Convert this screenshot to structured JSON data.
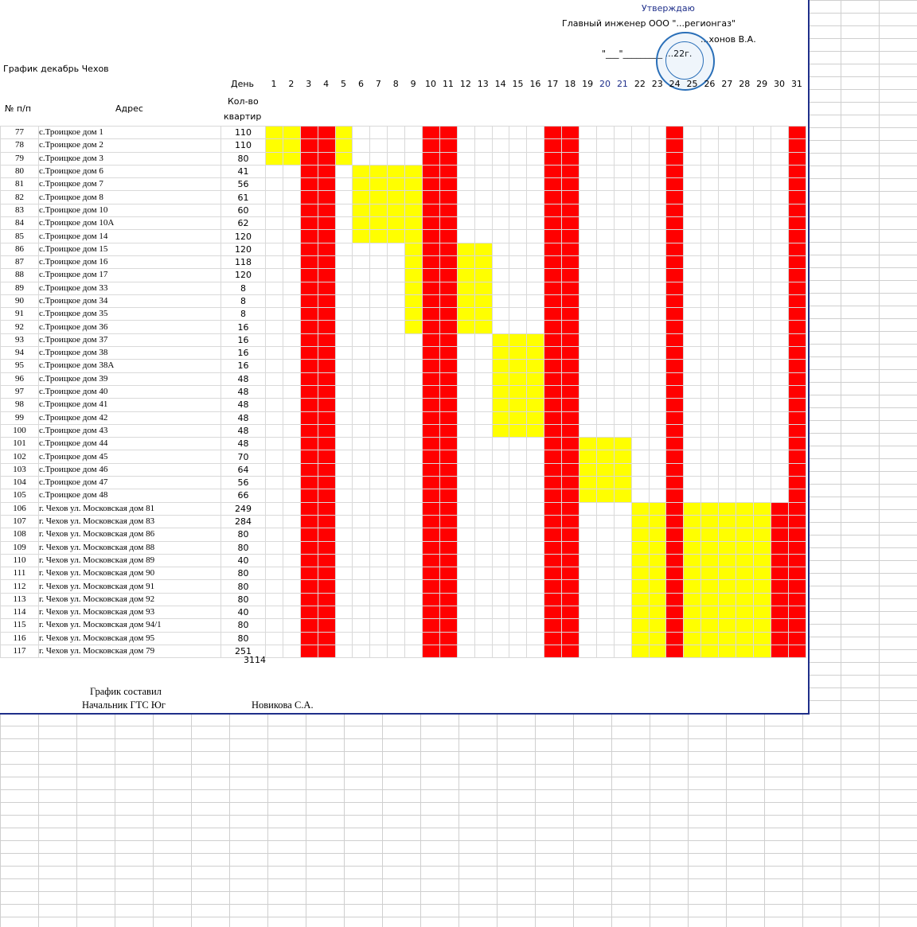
{
  "approval": {
    "title": "Утверждаю",
    "line1": "Главный инженер ООО \"...регионгаз\"",
    "line2": "...хонов В.А.",
    "line3": "\"___\"_________ ...22г."
  },
  "sheet_title": "График декабрь Чехов",
  "header": {
    "day_label": "День",
    "num_label": "№ п/п",
    "address_label": "Адрес",
    "qty_label_1": "Кол-во",
    "qty_label_2": "квартир",
    "days": [
      "1",
      "2",
      "3",
      "4",
      "5",
      "6",
      "7",
      "8",
      "9",
      "10",
      "11",
      "12",
      "13",
      "14",
      "15",
      "16",
      "17",
      "18",
      "19",
      "20",
      "21",
      "22",
      "23",
      "24",
      "25",
      "26",
      "27",
      "28",
      "29",
      "30",
      "31"
    ]
  },
  "rows": [
    {
      "n": "77",
      "addr": "с.Троицкое дом 1",
      "q": "110"
    },
    {
      "n": "78",
      "addr": "с.Троицкое дом 2",
      "q": "110"
    },
    {
      "n": "79",
      "addr": "с.Троицкое дом 3",
      "q": "80"
    },
    {
      "n": "80",
      "addr": "с.Троицкое дом 6",
      "q": "41"
    },
    {
      "n": "81",
      "addr": "с.Троицкое дом 7",
      "q": "56"
    },
    {
      "n": "82",
      "addr": "с.Троицкое дом 8",
      "q": "61"
    },
    {
      "n": "83",
      "addr": "с.Троицкое дом 10",
      "q": "60"
    },
    {
      "n": "84",
      "addr": "с.Троицкое дом 10А",
      "q": "62"
    },
    {
      "n": "85",
      "addr": "с.Троицкое дом 14",
      "q": "120"
    },
    {
      "n": "86",
      "addr": "с.Троицкое дом 15",
      "q": "120"
    },
    {
      "n": "87",
      "addr": "с.Троицкое дом 16",
      "q": "118"
    },
    {
      "n": "88",
      "addr": "с.Троицкое дом 17",
      "q": "120"
    },
    {
      "n": "89",
      "addr": "с.Троицкое дом 33",
      "q": "8"
    },
    {
      "n": "90",
      "addr": "с.Троицкое дом 34",
      "q": "8"
    },
    {
      "n": "91",
      "addr": "с.Троицкое дом 35",
      "q": "8"
    },
    {
      "n": "92",
      "addr": "с.Троицкое дом 36",
      "q": "16"
    },
    {
      "n": "93",
      "addr": "с.Троицкое дом 37",
      "q": "16"
    },
    {
      "n": "94",
      "addr": "с.Троицкое дом 38",
      "q": "16"
    },
    {
      "n": "95",
      "addr": "с.Троицкое дом 38А",
      "q": "16"
    },
    {
      "n": "96",
      "addr": "с.Троицкое дом 39",
      "q": "48"
    },
    {
      "n": "97",
      "addr": "с.Троицкое дом 40",
      "q": "48"
    },
    {
      "n": "98",
      "addr": "с.Троицкое дом 41",
      "q": "48"
    },
    {
      "n": "99",
      "addr": "с.Троицкое дом 42",
      "q": "48"
    },
    {
      "n": "100",
      "addr": "с.Троицкое дом 43",
      "q": "48"
    },
    {
      "n": "101",
      "addr": "с.Троицкое дом 44",
      "q": "48"
    },
    {
      "n": "102",
      "addr": "с.Троицкое дом 45",
      "q": "70"
    },
    {
      "n": "103",
      "addr": "с.Троицкое дом 46",
      "q": "64"
    },
    {
      "n": "104",
      "addr": "с.Троицкое дом 47",
      "q": "56"
    },
    {
      "n": "105",
      "addr": "с.Троицкое дом 48",
      "q": "66"
    },
    {
      "n": "106",
      "addr": "г. Чехов ул. Московская дом 81",
      "q": "249"
    },
    {
      "n": "107",
      "addr": "г. Чехов ул. Московская дом 83",
      "q": "284"
    },
    {
      "n": "108",
      "addr": "г. Чехов ул. Московская дом 86",
      "q": "80"
    },
    {
      "n": "109",
      "addr": "г. Чехов ул. Московская дом 88",
      "q": "80"
    },
    {
      "n": "110",
      "addr": "г. Чехов ул. Московская дом 89",
      "q": "40"
    },
    {
      "n": "111",
      "addr": "г. Чехов ул. Московская дом 90",
      "q": "80"
    },
    {
      "n": "112",
      "addr": "г. Чехов ул. Московская дом 91",
      "q": "80"
    },
    {
      "n": "113",
      "addr": "г. Чехов ул. Московская дом 92",
      "q": "80"
    },
    {
      "n": "114",
      "addr": "г. Чехов ул. Московская дом 93",
      "q": "40"
    },
    {
      "n": "115",
      "addr": "г. Чехов ул. Московская дом 94/1",
      "q": "80"
    },
    {
      "n": "116",
      "addr": "г. Чехов ул. Московская дом 95",
      "q": "80"
    },
    {
      "n": "117",
      "addr": "г. Чехов ул. Московская дом 79",
      "q": "251"
    }
  ],
  "schedule": {
    "weekend_days": [
      3,
      4,
      10,
      11,
      17,
      18,
      24,
      31
    ],
    "yellow_blocks": [
      {
        "rows": [
          0,
          1
        ],
        "days": [
          1,
          2,
          5
        ]
      },
      {
        "rows": [
          2
        ],
        "days": [
          1,
          2,
          5
        ]
      },
      {
        "rows": [
          3,
          4,
          5,
          6,
          7,
          8
        ],
        "days": [
          6,
          7,
          8,
          9
        ]
      },
      {
        "rows": [
          9,
          10,
          11,
          12,
          13,
          14,
          15
        ],
        "days": [
          9,
          12,
          13
        ]
      },
      {
        "rows": [
          16,
          17,
          18,
          19,
          20,
          21,
          22,
          23
        ],
        "days": [
          14,
          15,
          16
        ]
      },
      {
        "rows": [
          24,
          25,
          26,
          27,
          28
        ],
        "days": [
          19,
          20,
          21
        ]
      },
      {
        "rows": [
          29,
          30,
          31,
          32,
          33,
          34,
          35,
          36,
          37,
          38,
          39,
          40
        ],
        "days": [
          22,
          23,
          25,
          26,
          27,
          28,
          29
        ]
      }
    ],
    "extra_red": [
      {
        "rows": [
          29,
          30,
          31,
          32,
          33,
          34,
          35,
          36,
          37,
          38,
          39,
          40
        ],
        "days": [
          30
        ]
      }
    ]
  },
  "colors": {
    "weekend": "#ff0000",
    "work": "#ffff00",
    "accent": "#1f2f8a"
  },
  "total": "3114",
  "footer": {
    "compiled_label": "График составил",
    "position": "Начальник ГТС Юг",
    "name": "Новикова С.А."
  }
}
